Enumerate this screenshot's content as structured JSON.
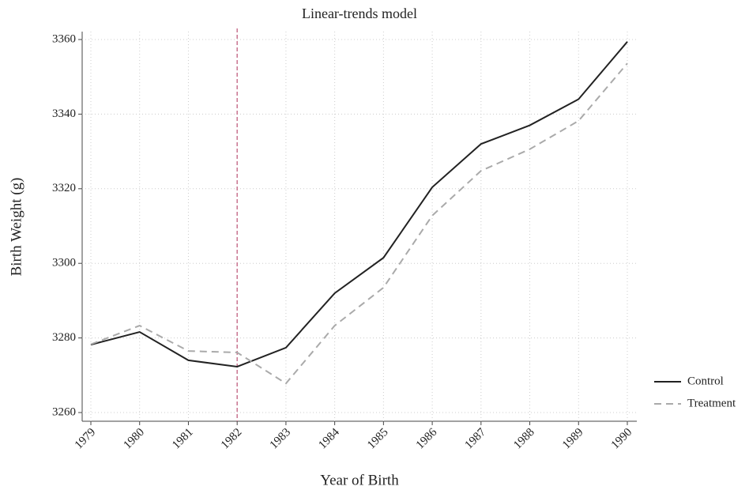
{
  "chart_data": {
    "type": "line",
    "title": "Linear-trends model",
    "x_label": "Year of Birth",
    "y_label": "Birth Weight (g)",
    "x": [
      1979,
      1980,
      1981,
      1982,
      1983,
      1984,
      1985,
      1986,
      1987,
      1988,
      1989,
      1990
    ],
    "series": [
      {
        "name": "Control",
        "color": "#222222",
        "dash": "solid",
        "values": [
          3278.2,
          3281.6,
          3274.0,
          3272.3,
          3277.4,
          3292.0,
          3301.5,
          3320.4,
          3332.0,
          3337.0,
          3344.0,
          3359.4
        ]
      },
      {
        "name": "Treatment",
        "color": "#aaaaaa",
        "dash": "dashed",
        "values": [
          3278.3,
          3283.3,
          3276.5,
          3276.1,
          3267.8,
          3283.3,
          3293.5,
          3312.8,
          3324.8,
          3330.6,
          3338.2,
          3353.6
        ]
      }
    ],
    "xlim": [
      1979,
      1990
    ],
    "xticks": [
      1979,
      1980,
      1981,
      1982,
      1983,
      1984,
      1985,
      1986,
      1987,
      1988,
      1989,
      1990
    ],
    "ylim": [
      3260,
      3360
    ],
    "yticks": [
      3260,
      3280,
      3300,
      3320,
      3340,
      3360
    ],
    "grid": true,
    "vline": {
      "x": 1982,
      "color": "#c9738f"
    },
    "legend": "right"
  }
}
